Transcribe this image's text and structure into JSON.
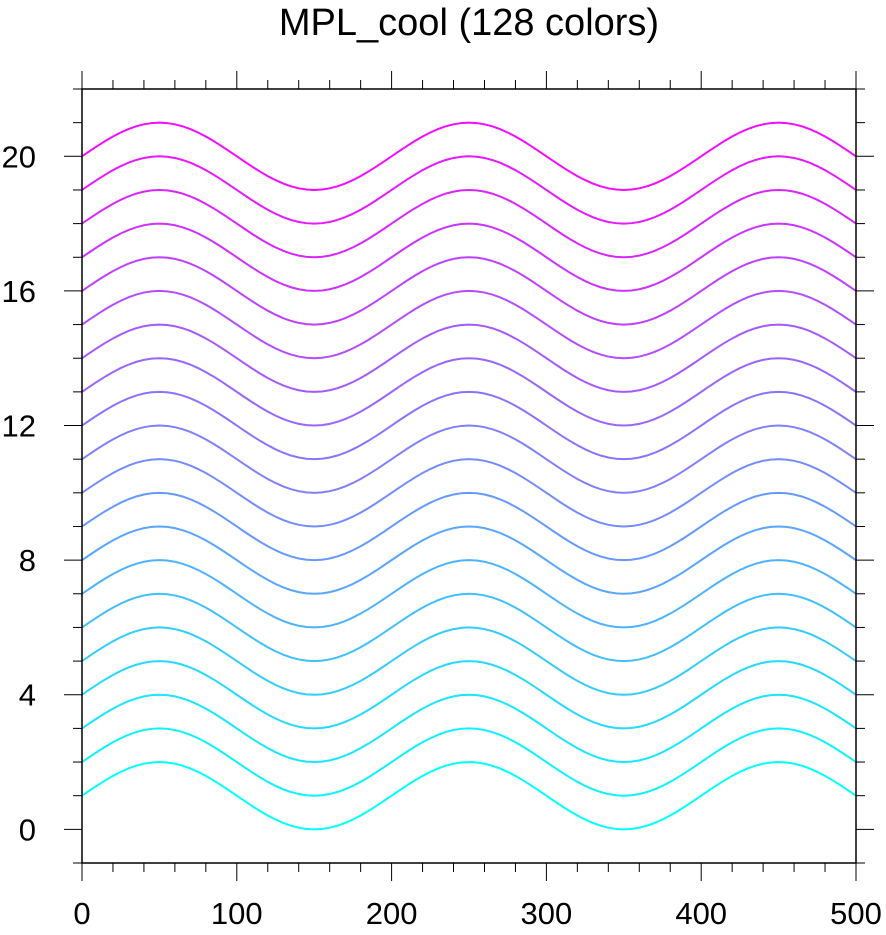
{
  "chart_data": {
    "type": "line",
    "title": "MPL_cool (128 colors)",
    "xlabel": "",
    "ylabel": "",
    "xlim": [
      0,
      500
    ],
    "ylim": [
      -1,
      22
    ],
    "x_ticks": [
      0,
      100,
      200,
      300,
      400,
      500
    ],
    "x_tick_labels": [
      "0",
      "100",
      "200",
      "300",
      "400",
      "500"
    ],
    "y_ticks": [
      0,
      4,
      8,
      12,
      16,
      20
    ],
    "y_tick_labels": [
      "0",
      "4",
      "8",
      "12",
      "16",
      "20"
    ],
    "grid": false,
    "legend": "none",
    "x": [
      0,
      25,
      50,
      75,
      100,
      125,
      150,
      175,
      200,
      225,
      250,
      275,
      300,
      325,
      350,
      375,
      400,
      425,
      450,
      475,
      500
    ],
    "series": [
      {
        "color": "#00ffff",
        "values": [
          1.0,
          1.707,
          2.0,
          1.707,
          1.0,
          0.293,
          0.0,
          0.293,
          1.0,
          1.707,
          2.0,
          1.707,
          1.0,
          0.293,
          0.0,
          0.293,
          1.0,
          1.707,
          2.0,
          1.707,
          1.0
        ]
      },
      {
        "color": "#0cf3ff",
        "values": [
          2.0,
          2.707,
          3.0,
          2.707,
          2.0,
          1.293,
          1.0,
          1.293,
          2.0,
          2.707,
          3.0,
          2.707,
          2.0,
          1.293,
          1.0,
          1.293,
          2.0,
          2.707,
          3.0,
          2.707,
          2.0
        ]
      },
      {
        "color": "#19e6ff",
        "values": [
          3.0,
          3.707,
          4.0,
          3.707,
          3.0,
          2.293,
          2.0,
          2.293,
          3.0,
          3.707,
          4.0,
          3.707,
          3.0,
          2.293,
          2.0,
          2.293,
          3.0,
          3.707,
          4.0,
          3.707,
          3.0
        ]
      },
      {
        "color": "#26d9ff",
        "values": [
          4.0,
          4.707,
          5.0,
          4.707,
          4.0,
          3.293,
          3.0,
          3.293,
          4.0,
          4.707,
          5.0,
          4.707,
          4.0,
          3.293,
          3.0,
          3.293,
          4.0,
          4.707,
          5.0,
          4.707,
          4.0
        ]
      },
      {
        "color": "#33ccff",
        "values": [
          5.0,
          5.707,
          6.0,
          5.707,
          5.0,
          4.293,
          4.0,
          4.293,
          5.0,
          5.707,
          6.0,
          5.707,
          5.0,
          4.293,
          4.0,
          4.293,
          5.0,
          5.707,
          6.0,
          5.707,
          5.0
        ]
      },
      {
        "color": "#40bfff",
        "values": [
          6.0,
          6.707,
          7.0,
          6.707,
          6.0,
          5.293,
          5.0,
          5.293,
          6.0,
          6.707,
          7.0,
          6.707,
          6.0,
          5.293,
          5.0,
          5.293,
          6.0,
          6.707,
          7.0,
          6.707,
          6.0
        ]
      },
      {
        "color": "#4db3ff",
        "values": [
          7.0,
          7.707,
          8.0,
          7.707,
          7.0,
          6.293,
          6.0,
          6.293,
          7.0,
          7.707,
          8.0,
          7.707,
          7.0,
          6.293,
          6.0,
          6.293,
          7.0,
          7.707,
          8.0,
          7.707,
          7.0
        ]
      },
      {
        "color": "#59a6ff",
        "values": [
          8.0,
          8.707,
          9.0,
          8.707,
          8.0,
          7.293,
          7.0,
          7.293,
          8.0,
          8.707,
          9.0,
          8.707,
          8.0,
          7.293,
          7.0,
          7.293,
          8.0,
          8.707,
          9.0,
          8.707,
          8.0
        ]
      },
      {
        "color": "#6699ff",
        "values": [
          9.0,
          9.707,
          10.0,
          9.707,
          9.0,
          8.293,
          8.0,
          8.293,
          9.0,
          9.707,
          10.0,
          9.707,
          9.0,
          8.293,
          8.0,
          8.293,
          9.0,
          9.707,
          10.0,
          9.707,
          9.0
        ]
      },
      {
        "color": "#738cff",
        "values": [
          10.0,
          10.707,
          11.0,
          10.707,
          10.0,
          9.293,
          9.0,
          9.293,
          10.0,
          10.707,
          11.0,
          10.707,
          10.0,
          9.293,
          9.0,
          9.293,
          10.0,
          10.707,
          11.0,
          10.707,
          10.0
        ]
      },
      {
        "color": "#8080ff",
        "values": [
          11.0,
          11.707,
          12.0,
          11.707,
          11.0,
          10.293,
          10.0,
          10.293,
          11.0,
          11.707,
          12.0,
          11.707,
          11.0,
          10.293,
          10.0,
          10.293,
          11.0,
          11.707,
          12.0,
          11.707,
          11.0
        ]
      },
      {
        "color": "#8c73ff",
        "values": [
          12.0,
          12.707,
          13.0,
          12.707,
          12.0,
          11.293,
          11.0,
          11.293,
          12.0,
          12.707,
          13.0,
          12.707,
          12.0,
          11.293,
          11.0,
          11.293,
          12.0,
          12.707,
          13.0,
          12.707,
          12.0
        ]
      },
      {
        "color": "#9966ff",
        "values": [
          13.0,
          13.707,
          14.0,
          13.707,
          13.0,
          12.293,
          12.0,
          12.293,
          13.0,
          13.707,
          14.0,
          13.707,
          13.0,
          12.293,
          12.0,
          12.293,
          13.0,
          13.707,
          14.0,
          13.707,
          13.0
        ]
      },
      {
        "color": "#a659ff",
        "values": [
          14.0,
          14.707,
          15.0,
          14.707,
          14.0,
          13.293,
          13.0,
          13.293,
          14.0,
          14.707,
          15.0,
          14.707,
          14.0,
          13.293,
          13.0,
          13.293,
          14.0,
          14.707,
          15.0,
          14.707,
          14.0
        ]
      },
      {
        "color": "#b34dff",
        "values": [
          15.0,
          15.707,
          16.0,
          15.707,
          15.0,
          14.293,
          14.0,
          14.293,
          15.0,
          15.707,
          16.0,
          15.707,
          15.0,
          14.293,
          14.0,
          14.293,
          15.0,
          15.707,
          16.0,
          15.707,
          15.0
        ]
      },
      {
        "color": "#bf40ff",
        "values": [
          16.0,
          16.707,
          17.0,
          16.707,
          16.0,
          15.293,
          15.0,
          15.293,
          16.0,
          16.707,
          17.0,
          16.707,
          16.0,
          15.293,
          15.0,
          15.293,
          16.0,
          16.707,
          17.0,
          16.707,
          16.0
        ]
      },
      {
        "color": "#cc33ff",
        "values": [
          17.0,
          17.707,
          18.0,
          17.707,
          17.0,
          16.293,
          16.0,
          16.293,
          17.0,
          17.707,
          18.0,
          17.707,
          17.0,
          16.293,
          16.0,
          16.293,
          17.0,
          17.707,
          18.0,
          17.707,
          17.0
        ]
      },
      {
        "color": "#d926ff",
        "values": [
          18.0,
          18.707,
          19.0,
          18.707,
          18.0,
          17.293,
          17.0,
          17.293,
          18.0,
          18.707,
          19.0,
          18.707,
          18.0,
          17.293,
          17.0,
          17.293,
          18.0,
          18.707,
          19.0,
          18.707,
          18.0
        ]
      },
      {
        "color": "#e619ff",
        "values": [
          19.0,
          19.707,
          20.0,
          19.707,
          19.0,
          18.293,
          18.0,
          18.293,
          19.0,
          19.707,
          20.0,
          19.707,
          19.0,
          18.293,
          18.0,
          18.293,
          19.0,
          19.707,
          20.0,
          19.707,
          19.0
        ]
      },
      {
        "color": "#f30cff",
        "values": [
          20.0,
          20.707,
          21.0,
          20.707,
          20.0,
          19.293,
          19.0,
          19.293,
          20.0,
          20.707,
          21.0,
          20.707,
          20.0,
          19.293,
          19.0,
          19.293,
          20.0,
          20.707,
          21.0,
          20.707,
          20.0
        ]
      }
    ]
  }
}
